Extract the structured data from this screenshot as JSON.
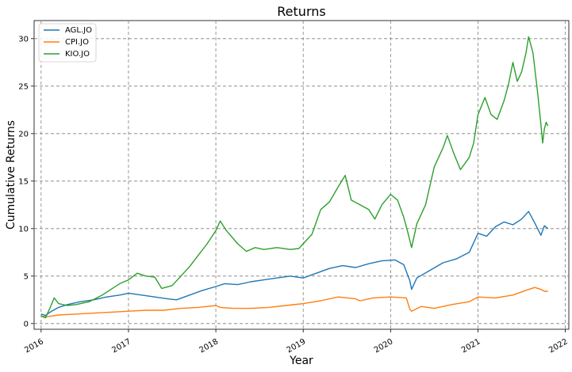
{
  "chart_data": {
    "type": "line",
    "title": "Returns",
    "xlabel": "Year",
    "ylabel": "Cumulative Returns",
    "xlim": [
      2015.92,
      2022.04
    ],
    "ylim": [
      -0.6,
      31.9
    ],
    "x_ticks": [
      2016,
      2017,
      2018,
      2019,
      2020,
      2021,
      2022
    ],
    "x_tick_labels": [
      "2016",
      "2017",
      "2018",
      "2019",
      "2020",
      "2021",
      "2022"
    ],
    "y_ticks": [
      0,
      5,
      10,
      15,
      20,
      25,
      30
    ],
    "y_tick_labels": [
      "0",
      "5",
      "10",
      "15",
      "20",
      "25",
      "30"
    ],
    "grid": true,
    "legend_position": "top-left",
    "series": [
      {
        "name": "AGL.JO",
        "color": "#1f77b4",
        "points": [
          [
            2016.0,
            1.0
          ],
          [
            2016.05,
            0.85
          ],
          [
            2016.12,
            1.3
          ],
          [
            2016.2,
            1.7
          ],
          [
            2016.3,
            2.0
          ],
          [
            2016.45,
            2.3
          ],
          [
            2016.6,
            2.5
          ],
          [
            2016.75,
            2.8
          ],
          [
            2016.9,
            3.0
          ],
          [
            2017.0,
            3.2
          ],
          [
            2017.15,
            3.0
          ],
          [
            2017.3,
            2.8
          ],
          [
            2017.45,
            2.6
          ],
          [
            2017.55,
            2.5
          ],
          [
            2017.7,
            3.0
          ],
          [
            2017.85,
            3.5
          ],
          [
            2018.0,
            3.9
          ],
          [
            2018.1,
            4.2
          ],
          [
            2018.25,
            4.1
          ],
          [
            2018.4,
            4.4
          ],
          [
            2018.55,
            4.6
          ],
          [
            2018.7,
            4.8
          ],
          [
            2018.85,
            5.0
          ],
          [
            2019.0,
            4.8
          ],
          [
            2019.15,
            5.3
          ],
          [
            2019.3,
            5.8
          ],
          [
            2019.45,
            6.1
          ],
          [
            2019.6,
            5.9
          ],
          [
            2019.75,
            6.3
          ],
          [
            2019.9,
            6.6
          ],
          [
            2020.05,
            6.7
          ],
          [
            2020.15,
            6.2
          ],
          [
            2020.22,
            4.5
          ],
          [
            2020.24,
            3.6
          ],
          [
            2020.3,
            4.8
          ],
          [
            2020.45,
            5.6
          ],
          [
            2020.6,
            6.4
          ],
          [
            2020.75,
            6.8
          ],
          [
            2020.9,
            7.5
          ],
          [
            2021.0,
            9.5
          ],
          [
            2021.1,
            9.2
          ],
          [
            2021.2,
            10.2
          ],
          [
            2021.3,
            10.7
          ],
          [
            2021.4,
            10.4
          ],
          [
            2021.5,
            11.0
          ],
          [
            2021.58,
            11.8
          ],
          [
            2021.65,
            10.6
          ],
          [
            2021.72,
            9.3
          ],
          [
            2021.76,
            10.3
          ],
          [
            2021.8,
            10.0
          ]
        ]
      },
      {
        "name": "CPI.JO",
        "color": "#ff7f0e",
        "points": [
          [
            2016.0,
            0.8
          ],
          [
            2016.05,
            0.7
          ],
          [
            2016.2,
            0.9
          ],
          [
            2016.4,
            1.0
          ],
          [
            2016.6,
            1.1
          ],
          [
            2016.8,
            1.2
          ],
          [
            2017.0,
            1.3
          ],
          [
            2017.2,
            1.4
          ],
          [
            2017.4,
            1.4
          ],
          [
            2017.6,
            1.6
          ],
          [
            2017.8,
            1.7
          ],
          [
            2018.0,
            1.9
          ],
          [
            2018.05,
            1.7
          ],
          [
            2018.2,
            1.6
          ],
          [
            2018.4,
            1.6
          ],
          [
            2018.6,
            1.7
          ],
          [
            2018.8,
            1.9
          ],
          [
            2019.0,
            2.1
          ],
          [
            2019.2,
            2.4
          ],
          [
            2019.4,
            2.8
          ],
          [
            2019.6,
            2.6
          ],
          [
            2019.65,
            2.4
          ],
          [
            2019.8,
            2.7
          ],
          [
            2020.0,
            2.8
          ],
          [
            2020.18,
            2.7
          ],
          [
            2020.22,
            1.5
          ],
          [
            2020.24,
            1.3
          ],
          [
            2020.35,
            1.8
          ],
          [
            2020.5,
            1.6
          ],
          [
            2020.7,
            2.0
          ],
          [
            2020.9,
            2.3
          ],
          [
            2021.0,
            2.8
          ],
          [
            2021.2,
            2.7
          ],
          [
            2021.4,
            3.0
          ],
          [
            2021.55,
            3.5
          ],
          [
            2021.65,
            3.8
          ],
          [
            2021.72,
            3.6
          ],
          [
            2021.76,
            3.4
          ],
          [
            2021.8,
            3.4
          ]
        ]
      },
      {
        "name": "KIO.JO",
        "color": "#2ca02c",
        "points": [
          [
            2016.0,
            0.8
          ],
          [
            2016.05,
            0.6
          ],
          [
            2016.1,
            1.6
          ],
          [
            2016.15,
            2.7
          ],
          [
            2016.2,
            2.1
          ],
          [
            2016.3,
            1.9
          ],
          [
            2016.4,
            2.0
          ],
          [
            2016.55,
            2.3
          ],
          [
            2016.7,
            3.0
          ],
          [
            2016.8,
            3.6
          ],
          [
            2016.9,
            4.2
          ],
          [
            2017.0,
            4.6
          ],
          [
            2017.1,
            5.3
          ],
          [
            2017.2,
            5.0
          ],
          [
            2017.3,
            4.9
          ],
          [
            2017.38,
            3.7
          ],
          [
            2017.5,
            4.0
          ],
          [
            2017.6,
            5.0
          ],
          [
            2017.7,
            6.0
          ],
          [
            2017.8,
            7.2
          ],
          [
            2017.9,
            8.4
          ],
          [
            2018.0,
            9.8
          ],
          [
            2018.05,
            10.8
          ],
          [
            2018.12,
            9.8
          ],
          [
            2018.25,
            8.4
          ],
          [
            2018.35,
            7.6
          ],
          [
            2018.45,
            8.0
          ],
          [
            2018.55,
            7.8
          ],
          [
            2018.7,
            8.0
          ],
          [
            2018.85,
            7.8
          ],
          [
            2018.95,
            7.9
          ],
          [
            2019.0,
            8.4
          ],
          [
            2019.1,
            9.4
          ],
          [
            2019.2,
            12.0
          ],
          [
            2019.3,
            12.8
          ],
          [
            2019.4,
            14.4
          ],
          [
            2019.48,
            15.6
          ],
          [
            2019.55,
            13.0
          ],
          [
            2019.65,
            12.5
          ],
          [
            2019.75,
            12.0
          ],
          [
            2019.82,
            11.0
          ],
          [
            2019.9,
            12.5
          ],
          [
            2020.0,
            13.6
          ],
          [
            2020.08,
            13.0
          ],
          [
            2020.15,
            11.2
          ],
          [
            2020.2,
            9.5
          ],
          [
            2020.24,
            8.0
          ],
          [
            2020.3,
            10.5
          ],
          [
            2020.4,
            12.5
          ],
          [
            2020.5,
            16.5
          ],
          [
            2020.6,
            18.5
          ],
          [
            2020.65,
            19.8
          ],
          [
            2020.72,
            18.0
          ],
          [
            2020.8,
            16.2
          ],
          [
            2020.9,
            17.5
          ],
          [
            2020.95,
            19.0
          ],
          [
            2021.0,
            22.0
          ],
          [
            2021.08,
            23.8
          ],
          [
            2021.15,
            22.0
          ],
          [
            2021.22,
            21.5
          ],
          [
            2021.3,
            23.5
          ],
          [
            2021.35,
            25.2
          ],
          [
            2021.4,
            27.5
          ],
          [
            2021.45,
            25.5
          ],
          [
            2021.5,
            26.5
          ],
          [
            2021.55,
            28.5
          ],
          [
            2021.58,
            30.2
          ],
          [
            2021.63,
            28.5
          ],
          [
            2021.68,
            24.5
          ],
          [
            2021.72,
            21.0
          ],
          [
            2021.74,
            19.0
          ],
          [
            2021.76,
            20.5
          ],
          [
            2021.78,
            21.2
          ],
          [
            2021.8,
            20.8
          ]
        ]
      }
    ]
  }
}
